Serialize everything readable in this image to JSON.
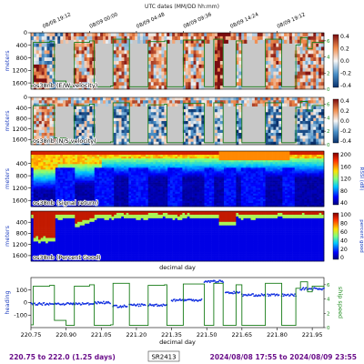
{
  "top_axis": {
    "label": "UTC dates (MM/DD hh:mm)",
    "ticks": [
      "08/08 19:12",
      "08/09 00:00",
      "08/09 04:48",
      "08/09 09:36",
      "08/09 14:24",
      "08/09 19:12"
    ]
  },
  "footer": {
    "left": "220.75 to 222.0 (1.25 days)",
    "center": "SR2413",
    "right": "2024/08/08 17:55 to 2024/08/09 23:55"
  },
  "colors": {
    "footer_left": "#6b0f8a",
    "footer_right": "#6b0f8a",
    "axis_label_blue": "#1f3fbf",
    "axis_label_green": "#1a8a1a",
    "line_green": "#147a14",
    "dots_blue": "#1230e0"
  },
  "chart_data": [
    {
      "type": "heatmap",
      "title": "os38nb (E/W velocity)",
      "ylabel": "meters",
      "yticks": [
        0,
        400,
        800,
        1200,
        1600
      ],
      "ylim": [
        1800,
        0
      ],
      "xlim": [
        220.75,
        222.0
      ],
      "colorbar": {
        "ticks": [
          "0.4",
          "0.2",
          "0.0",
          "-0.2",
          "-0.4"
        ],
        "range": [
          -0.4,
          0.4
        ],
        "colormap": "diverging RdBu"
      },
      "right_axis_ticks": [
        "6",
        "4",
        "2",
        "0"
      ],
      "right_axis_range": [
        0,
        7
      ]
    },
    {
      "type": "heatmap",
      "title": "os38nb (N/S velocity)",
      "ylabel": "meters",
      "yticks": [
        0,
        400,
        800,
        1200,
        1600
      ],
      "ylim": [
        1800,
        0
      ],
      "xlim": [
        220.75,
        222.0
      ],
      "colorbar": {
        "ticks": [
          "0.4",
          "0.2",
          "0.0",
          "-0.2",
          "-0.4"
        ],
        "range": [
          -0.4,
          0.4
        ],
        "colormap": "diverging RdBu"
      },
      "right_axis_ticks": [
        "6",
        "4",
        "2",
        "0"
      ],
      "right_axis_range": [
        0,
        7
      ]
    },
    {
      "type": "heatmap",
      "title": "os38nb (signal return)",
      "ylabel": "meters",
      "yticks": [
        400,
        800,
        1200,
        1600
      ],
      "ylim": [
        1800,
        0
      ],
      "xlim": [
        220.75,
        222.0
      ],
      "colorbar": {
        "label": "RSSI (dB)",
        "ticks": [
          "200",
          "160",
          "120",
          "80",
          "40"
        ],
        "range": [
          10,
          210
        ],
        "colormap": "jet"
      }
    },
    {
      "type": "heatmap",
      "title": "os38nb (Percent Good)",
      "ylabel": "meters",
      "yticks": [
        400,
        800,
        1200,
        1600
      ],
      "ylim": [
        1800,
        0
      ],
      "xlim": [
        220.75,
        222.0
      ],
      "colorbar": {
        "label": "percent good",
        "ticks": [
          "100",
          "80",
          "60",
          "40",
          "20",
          "0"
        ],
        "range": [
          0,
          100
        ],
        "colormap": "jet"
      }
    },
    {
      "type": "scatter",
      "xlabel": "decimal day",
      "xticks": [
        "220.75",
        "220.90",
        "221.05",
        "221.20",
        "221.35",
        "221.50",
        "221.65",
        "221.80",
        "221.95"
      ],
      "xlim": [
        220.75,
        222.0
      ],
      "series": [
        {
          "name": "heading",
          "axis": "left",
          "ylim": [
            -200,
            200
          ],
          "yticks": [
            "100",
            "0",
            "-100"
          ]
        },
        {
          "name": "ship speed",
          "axis": "right",
          "ylim": [
            0,
            7
          ],
          "yticks": [
            "6",
            "4",
            "2",
            "0"
          ]
        }
      ],
      "speed_steps": [
        [
          220.75,
          0.4
        ],
        [
          220.76,
          5.8
        ],
        [
          220.83,
          5.9
        ],
        [
          220.85,
          1.0
        ],
        [
          220.9,
          0.3
        ],
        [
          220.935,
          5.8
        ],
        [
          221.0,
          6.0
        ],
        [
          221.02,
          0.3
        ],
        [
          221.09,
          0.4
        ],
        [
          221.1,
          6.2
        ],
        [
          221.16,
          6.2
        ],
        [
          221.17,
          0.3
        ],
        [
          221.23,
          0.3
        ],
        [
          221.25,
          5.9
        ],
        [
          221.32,
          6.0
        ],
        [
          221.33,
          0.3
        ],
        [
          221.395,
          0.3
        ],
        [
          221.4,
          6.1
        ],
        [
          221.48,
          6.1
        ],
        [
          221.49,
          0.3
        ],
        [
          221.52,
          0.3
        ],
        [
          221.53,
          6.2
        ],
        [
          221.56,
          6.2
        ],
        [
          221.57,
          0.3
        ],
        [
          221.62,
          0.3
        ],
        [
          221.625,
          6.0
        ],
        [
          221.64,
          6.0
        ],
        [
          221.65,
          0.3
        ],
        [
          221.745,
          0.3
        ],
        [
          221.75,
          6.2
        ],
        [
          221.815,
          6.2
        ],
        [
          221.82,
          0.3
        ],
        [
          221.875,
          0.3
        ],
        [
          221.88,
          5.5
        ],
        [
          221.9,
          6.4
        ],
        [
          221.93,
          5.0
        ],
        [
          221.95,
          5.8
        ],
        [
          222.0,
          5.6
        ]
      ],
      "heading_segments": [
        [
          220.75,
          220.86,
          -10
        ],
        [
          220.86,
          220.93,
          -10
        ],
        [
          220.93,
          221.02,
          -10
        ],
        [
          221.02,
          221.09,
          0
        ],
        [
          221.1,
          221.16,
          -30
        ],
        [
          221.17,
          221.24,
          -20
        ],
        [
          221.25,
          221.33,
          -20
        ],
        [
          221.35,
          221.48,
          20
        ],
        [
          221.49,
          221.53,
          170
        ],
        [
          221.53,
          221.57,
          170
        ],
        [
          221.58,
          221.64,
          80
        ],
        [
          221.65,
          221.75,
          60
        ],
        [
          221.76,
          221.81,
          60
        ],
        [
          221.82,
          221.88,
          60
        ],
        [
          221.9,
          222.0,
          110
        ]
      ]
    }
  ]
}
